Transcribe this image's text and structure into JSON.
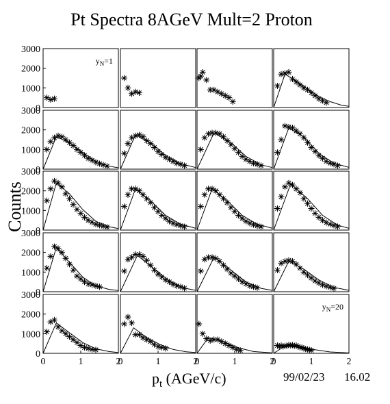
{
  "chart_data": {
    "type": "scatter",
    "title": "Pt Spectra 8AGeV Mult=2 Proton",
    "xlabel_main": "p",
    "xlabel_sub": "t",
    "xlabel_rest": " (AGeV/c)",
    "ylabel": "Counts",
    "date": "99/02/23",
    "time": "16.02",
    "grid": false,
    "xlim": [
      0,
      2
    ],
    "ylim": [
      0,
      3000
    ],
    "x_ticks": [
      "0",
      "1",
      "2"
    ],
    "y_ticks": [
      "0",
      "1000",
      "2000",
      "3000"
    ],
    "panel_labels": [
      {
        "panel": 0,
        "text": "y",
        "sub": "N",
        "rest": "=1"
      },
      {
        "panel": 19,
        "text": "y",
        "sub": "N",
        "rest": "=20"
      }
    ],
    "panels": [
      {
        "x": [
          0.1,
          0.2,
          0.3
        ],
        "y": [
          500,
          400,
          450
        ]
      },
      {
        "x": [
          0.1,
          0.2,
          0.3,
          0.4,
          0.5
        ],
        "y": [
          1500,
          1000,
          700,
          800,
          750
        ]
      },
      {
        "x": [
          0.05,
          0.1,
          0.15,
          0.25,
          0.35,
          0.45,
          0.55,
          0.65,
          0.75,
          0.85,
          0.95
        ],
        "y": [
          1500,
          1600,
          1800,
          1400,
          900,
          900,
          800,
          700,
          600,
          500,
          300
        ]
      },
      {
        "x": [
          0.1,
          0.2,
          0.3,
          0.4,
          0.5,
          0.6,
          0.7,
          0.8,
          0.9,
          1.0,
          1.1,
          1.2,
          1.3,
          1.4
        ],
        "y": [
          1100,
          1700,
          1750,
          1800,
          1450,
          1300,
          1150,
          1000,
          900,
          750,
          600,
          450,
          350,
          250
        ],
        "fit": [
          [
            0,
            0
          ],
          [
            0.3,
            1700
          ],
          [
            0.6,
            1350
          ],
          [
            0.9,
            950
          ],
          [
            1.2,
            550
          ],
          [
            1.5,
            300
          ],
          [
            1.8,
            120
          ],
          [
            2.0,
            60
          ]
        ]
      },
      {
        "x": [
          0.1,
          0.2,
          0.3,
          0.4,
          0.5,
          0.6,
          0.7,
          0.8,
          0.9,
          1.0,
          1.1,
          1.2,
          1.3,
          1.4,
          1.5,
          1.6,
          1.7
        ],
        "y": [
          1000,
          1400,
          1600,
          1700,
          1650,
          1500,
          1350,
          1200,
          1000,
          850,
          700,
          550,
          450,
          350,
          280,
          220,
          150
        ],
        "fit": [
          [
            0,
            0
          ],
          [
            0.35,
            1650
          ],
          [
            0.7,
            1350
          ],
          [
            1.05,
            850
          ],
          [
            1.4,
            400
          ],
          [
            1.75,
            150
          ],
          [
            2.0,
            70
          ]
        ]
      },
      {
        "x": [
          0.1,
          0.2,
          0.3,
          0.4,
          0.5,
          0.6,
          0.7,
          0.8,
          0.9,
          1.0,
          1.1,
          1.2,
          1.3,
          1.4,
          1.5,
          1.6,
          1.7
        ],
        "y": [
          800,
          1300,
          1600,
          1700,
          1750,
          1650,
          1450,
          1300,
          1100,
          900,
          750,
          600,
          500,
          400,
          300,
          250,
          180
        ],
        "fit": [
          [
            0,
            0
          ],
          [
            0.4,
            1750
          ],
          [
            0.8,
            1350
          ],
          [
            1.2,
            700
          ],
          [
            1.6,
            280
          ],
          [
            2.0,
            80
          ]
        ]
      },
      {
        "x": [
          0.1,
          0.2,
          0.3,
          0.4,
          0.5,
          0.6,
          0.7,
          0.8,
          0.9,
          1.0,
          1.1,
          1.2,
          1.3,
          1.4,
          1.5,
          1.6,
          1.7
        ],
        "y": [
          1000,
          1600,
          1800,
          1850,
          1850,
          1800,
          1650,
          1450,
          1250,
          1050,
          850,
          650,
          500,
          400,
          300,
          250,
          180
        ],
        "fit": [
          [
            0,
            0
          ],
          [
            0.45,
            1850
          ],
          [
            0.9,
            1350
          ],
          [
            1.3,
            650
          ],
          [
            1.7,
            220
          ],
          [
            2.0,
            80
          ]
        ]
      },
      {
        "x": [
          0.1,
          0.2,
          0.3,
          0.4,
          0.5,
          0.6,
          0.7,
          0.8,
          0.9,
          1.0,
          1.1,
          1.2,
          1.3,
          1.4,
          1.5,
          1.6,
          1.7
        ],
        "y": [
          850,
          1500,
          2200,
          2150,
          2100,
          1950,
          1800,
          1600,
          1350,
          1100,
          900,
          700,
          550,
          400,
          300,
          250,
          180
        ],
        "fit": [
          [
            0,
            0
          ],
          [
            0.4,
            2100
          ],
          [
            0.8,
            1650
          ],
          [
            1.2,
            800
          ],
          [
            1.6,
            300
          ],
          [
            2.0,
            90
          ]
        ]
      },
      {
        "x": [
          0.1,
          0.2,
          0.3,
          0.4,
          0.5,
          0.6,
          0.7,
          0.8,
          0.9,
          1.0,
          1.1,
          1.2,
          1.3,
          1.4,
          1.5,
          1.6,
          1.7
        ],
        "y": [
          1500,
          2100,
          2500,
          2400,
          2200,
          1850,
          1600,
          1300,
          1050,
          850,
          650,
          500,
          400,
          300,
          250,
          200,
          150
        ],
        "fit": [
          [
            0,
            0
          ],
          [
            0.35,
            2400
          ],
          [
            0.7,
            1850
          ],
          [
            1.05,
            1050
          ],
          [
            1.4,
            450
          ],
          [
            1.75,
            170
          ],
          [
            2.0,
            80
          ]
        ]
      },
      {
        "x": [
          0.1,
          0.2,
          0.3,
          0.4,
          0.5,
          0.6,
          0.7,
          0.8,
          0.9,
          1.0,
          1.1,
          1.2,
          1.3,
          1.4,
          1.5,
          1.6,
          1.7
        ],
        "y": [
          1200,
          1800,
          2100,
          2100,
          2000,
          1800,
          1600,
          1400,
          1150,
          950,
          750,
          600,
          450,
          350,
          280,
          220,
          170
        ],
        "fit": [
          [
            0,
            0
          ],
          [
            0.4,
            2100
          ],
          [
            0.8,
            1500
          ],
          [
            1.2,
            750
          ],
          [
            1.6,
            300
          ],
          [
            2.0,
            90
          ]
        ]
      },
      {
        "x": [
          0.1,
          0.2,
          0.3,
          0.4,
          0.5,
          0.6,
          0.7,
          0.8,
          0.9,
          1.0,
          1.1,
          1.2,
          1.3,
          1.4,
          1.5,
          1.6,
          1.7
        ],
        "y": [
          1200,
          1800,
          2100,
          2100,
          2000,
          1800,
          1600,
          1400,
          1150,
          950,
          750,
          600,
          450,
          350,
          280,
          220,
          170
        ],
        "fit": [
          [
            0,
            0
          ],
          [
            0.4,
            2100
          ],
          [
            0.8,
            1500
          ],
          [
            1.2,
            750
          ],
          [
            1.6,
            300
          ],
          [
            2.0,
            90
          ]
        ]
      },
      {
        "x": [
          0.1,
          0.2,
          0.3,
          0.4,
          0.5,
          0.6,
          0.7,
          0.8,
          0.9,
          1.0,
          1.1,
          1.2,
          1.3,
          1.4,
          1.5,
          1.6,
          1.7
        ],
        "y": [
          1100,
          1700,
          2200,
          2400,
          2300,
          2100,
          1900,
          1600,
          1350,
          1100,
          850,
          650,
          500,
          380,
          300,
          240,
          180
        ],
        "fit": [
          [
            0,
            0
          ],
          [
            0.45,
            2350
          ],
          [
            0.9,
            1600
          ],
          [
            1.3,
            750
          ],
          [
            1.7,
            250
          ],
          [
            2.0,
            90
          ]
        ]
      },
      {
        "x": [
          0.1,
          0.2,
          0.3,
          0.4,
          0.5,
          0.6,
          0.7,
          0.8,
          0.9,
          1.0,
          1.1,
          1.2,
          1.3,
          1.4,
          1.5
        ],
        "y": [
          1200,
          1800,
          2300,
          2200,
          2000,
          1700,
          1400,
          1100,
          800,
          650,
          500,
          400,
          350,
          300,
          250
        ],
        "fit": [
          [
            0,
            0
          ],
          [
            0.35,
            2250
          ],
          [
            0.7,
            1500
          ],
          [
            1.05,
            750
          ],
          [
            1.4,
            300
          ],
          [
            1.75,
            120
          ],
          [
            2.0,
            60
          ]
        ]
      },
      {
        "x": [
          0.1,
          0.2,
          0.3,
          0.4,
          0.5,
          0.6,
          0.7,
          0.8,
          0.9,
          1.0,
          1.1,
          1.2,
          1.3,
          1.4,
          1.5,
          1.6,
          1.7
        ],
        "y": [
          1050,
          1650,
          1750,
          1900,
          1900,
          1800,
          1600,
          1350,
          1100,
          900,
          750,
          600,
          500,
          380,
          300,
          250,
          180
        ],
        "fit": [
          [
            0,
            0
          ],
          [
            0.45,
            1850
          ],
          [
            0.9,
            1150
          ],
          [
            1.3,
            550
          ],
          [
            1.7,
            180
          ],
          [
            2.0,
            70
          ]
        ]
      },
      {
        "x": [
          0.1,
          0.2,
          0.3,
          0.4,
          0.5,
          0.6,
          0.7,
          0.8,
          0.9,
          1.0,
          1.1,
          1.2,
          1.3,
          1.4,
          1.5,
          1.6
        ],
        "y": [
          1050,
          1650,
          1750,
          1750,
          1700,
          1550,
          1350,
          1150,
          950,
          800,
          650,
          500,
          400,
          300,
          250,
          200
        ],
        "fit": [
          [
            0,
            0
          ],
          [
            0.45,
            1750
          ],
          [
            0.9,
            1100
          ],
          [
            1.3,
            500
          ],
          [
            1.7,
            170
          ],
          [
            2.0,
            70
          ]
        ]
      },
      {
        "x": [
          0.1,
          0.2,
          0.3,
          0.4,
          0.5,
          0.6,
          0.7,
          0.8,
          0.9,
          1.0,
          1.1,
          1.2,
          1.3,
          1.4,
          1.5,
          1.6
        ],
        "y": [
          1100,
          1450,
          1550,
          1600,
          1550,
          1400,
          1200,
          1000,
          850,
          700,
          550,
          450,
          350,
          280,
          220,
          170
        ],
        "fit": [
          [
            0,
            0
          ],
          [
            0.4,
            1550
          ],
          [
            0.8,
            1150
          ],
          [
            1.2,
            600
          ],
          [
            1.6,
            220
          ],
          [
            2.0,
            70
          ]
        ]
      },
      {
        "x": [
          0.1,
          0.2,
          0.3,
          0.4,
          0.5,
          0.6,
          0.7,
          0.8,
          0.9,
          1.0,
          1.1,
          1.2,
          1.3,
          1.4
        ],
        "y": [
          1100,
          1600,
          1700,
          1350,
          1150,
          1000,
          850,
          700,
          550,
          400,
          300,
          250,
          200,
          180
        ],
        "fit": [
          [
            0,
            0
          ],
          [
            0.35,
            1550
          ],
          [
            0.7,
            1050
          ],
          [
            1.05,
            550
          ],
          [
            1.4,
            230
          ],
          [
            1.75,
            90
          ],
          [
            2.0,
            40
          ]
        ]
      },
      {
        "x": [
          0.1,
          0.2,
          0.3,
          0.4,
          0.5,
          0.6,
          0.7,
          0.8,
          0.9,
          1.0,
          1.1,
          1.2
        ],
        "y": [
          1500,
          1850,
          1550,
          950,
          950,
          800,
          700,
          600,
          450,
          350,
          300,
          250
        ],
        "fit": [
          [
            0,
            0
          ],
          [
            0.35,
            1300
          ],
          [
            0.7,
            800
          ],
          [
            1.05,
            450
          ],
          [
            1.4,
            200
          ],
          [
            1.75,
            80
          ],
          [
            2.0,
            40
          ]
        ]
      },
      {
        "x": [
          0.05,
          0.15,
          0.25,
          0.35,
          0.45,
          0.55,
          0.65,
          0.75,
          0.85,
          0.95,
          1.05,
          1.15
        ],
        "y": [
          1500,
          1000,
          750,
          650,
          700,
          700,
          600,
          500,
          400,
          300,
          200,
          150
        ],
        "fit": [
          [
            0,
            0
          ],
          [
            0.3,
            800
          ],
          [
            0.7,
            600
          ],
          [
            1.1,
            280
          ],
          [
            1.5,
            90
          ],
          [
            2.0,
            20
          ]
        ]
      },
      {
        "x": [
          0.1,
          0.15,
          0.2,
          0.25,
          0.3,
          0.35,
          0.4,
          0.45,
          0.5,
          0.55,
          0.6,
          0.65,
          0.7,
          0.75,
          0.8,
          0.85,
          0.9,
          0.95,
          1.0
        ],
        "y": [
          400,
          350,
          400,
          350,
          380,
          380,
          430,
          400,
          420,
          380,
          400,
          350,
          300,
          300,
          250,
          220,
          200,
          180,
          160
        ],
        "fit": [
          [
            0,
            0
          ],
          [
            0.3,
            380
          ],
          [
            0.7,
            330
          ],
          [
            1.1,
            180
          ],
          [
            1.5,
            70
          ],
          [
            2.0,
            20
          ]
        ]
      }
    ]
  }
}
